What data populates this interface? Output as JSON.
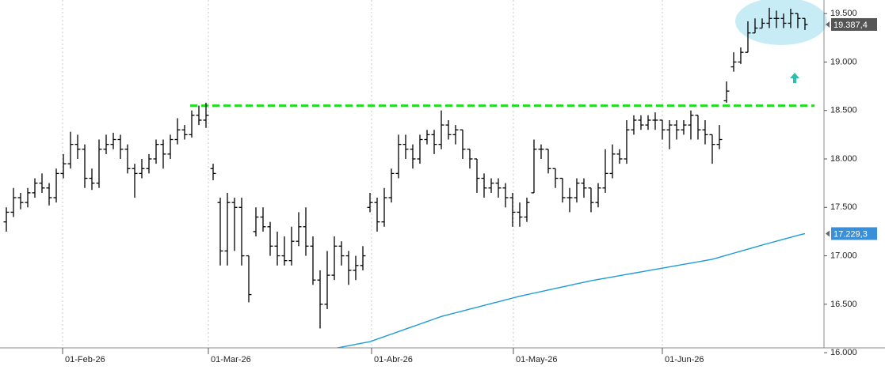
{
  "chart_data": {
    "type": "ohlc",
    "xlim": [
      -0.89,
      114.67
    ],
    "ylim": [
      16050,
      19640
    ],
    "xticks": [
      {
        "value": 7.89,
        "label": "01-Feb-26"
      },
      {
        "value": 28.33,
        "label": "01-Mar-26"
      },
      {
        "value": 51.22,
        "label": "01-Abr-26"
      },
      {
        "value": 71.11,
        "label": "01-May-26"
      },
      {
        "value": 92.0,
        "label": "01-Jun-26"
      }
    ],
    "yticks": [
      {
        "value": 16000,
        "label": "16.000"
      },
      {
        "value": 16500,
        "label": "16.500"
      },
      {
        "value": 17000,
        "label": "17.000"
      },
      {
        "value": 17500,
        "label": "17.500"
      },
      {
        "value": 18000,
        "label": "18.000"
      },
      {
        "value": 18500,
        "label": "18.500"
      },
      {
        "value": 19000,
        "label": "19.000"
      },
      {
        "value": 19500,
        "label": "19.500"
      }
    ],
    "hline": {
      "value": 18550,
      "color": "#22dd22"
    },
    "series": [
      {
        "type": "ohlc",
        "color": "#000000",
        "label_color": "#555555",
        "last_label": "19.387,4",
        "open": [
          17350,
          17450,
          17600,
          17550,
          17650,
          17750,
          17700,
          17600,
          17850,
          17950,
          18150,
          18100,
          17800,
          17750,
          18100,
          18150,
          18200,
          18100,
          17900,
          17850,
          17900,
          18000,
          18150,
          18050,
          18200,
          18300,
          18250,
          18450,
          18400,
          17900,
          17550,
          17050,
          17550,
          17500,
          17000,
          17250,
          17400,
          17300,
          17100,
          17000,
          16950,
          17150,
          17300,
          17100,
          16750,
          16500,
          16800,
          17100,
          17000,
          16850,
          16900,
          17500,
          17550,
          17350,
          17600,
          17850,
          18150,
          18100,
          18000,
          18200,
          18250,
          18150,
          18350,
          18250,
          18300,
          18100,
          18000,
          17800,
          17700,
          17750,
          17700,
          17600,
          17450,
          17400,
          17650,
          18100,
          18100,
          17900,
          17800,
          17600,
          17600,
          17750,
          17700,
          17550,
          17700,
          17850,
          18050,
          18000,
          18300,
          18400,
          18350,
          18400,
          18400,
          18300,
          18350,
          18300,
          18350,
          18450,
          18300,
          18250,
          18150,
          18600,
          18950,
          19000,
          19100,
          19300,
          19350,
          19400,
          19450,
          19450,
          19400,
          19500,
          19450
        ],
        "high": [
          17500,
          17700,
          17650,
          17700,
          17800,
          17850,
          17750,
          17900,
          18050,
          18280,
          18250,
          18150,
          17900,
          18200,
          18250,
          18270,
          18250,
          18150,
          17950,
          18000,
          18050,
          18200,
          18200,
          18250,
          18420,
          18350,
          18500,
          18550,
          18580,
          17950,
          17600,
          17650,
          17600,
          17600,
          17000,
          17500,
          17500,
          17350,
          17250,
          17200,
          17300,
          17450,
          17500,
          17200,
          16850,
          17050,
          17200,
          17150,
          17050,
          17000,
          17100,
          17650,
          17600,
          17700,
          17900,
          18250,
          18250,
          18150,
          18250,
          18300,
          18300,
          18500,
          18400,
          18350,
          18300,
          18100,
          18000,
          17850,
          17800,
          17800,
          17750,
          17650,
          17550,
          17600,
          18200,
          18150,
          18100,
          17900,
          17800,
          17700,
          17800,
          17800,
          17700,
          17750,
          18100,
          18150,
          18100,
          18400,
          18450,
          18450,
          18450,
          18480,
          18400,
          18400,
          18400,
          18400,
          18500,
          18450,
          18400,
          18250,
          18350,
          18800,
          19100,
          19150,
          19420,
          19450,
          19450,
          19560,
          19530,
          19500,
          19550,
          19500,
          19450
        ],
        "low": [
          17250,
          17400,
          17480,
          17500,
          17600,
          17650,
          17520,
          17550,
          17800,
          17900,
          18000,
          17700,
          17680,
          17700,
          18050,
          18100,
          18000,
          17850,
          17600,
          17800,
          17850,
          17950,
          17900,
          18000,
          18150,
          18200,
          18220,
          18350,
          18320,
          17780,
          16900,
          16900,
          17050,
          16900,
          16520,
          17200,
          17250,
          17000,
          16900,
          16900,
          16900,
          17100,
          17000,
          16700,
          16250,
          16450,
          16750,
          16900,
          16700,
          16750,
          16850,
          17450,
          17250,
          17300,
          17550,
          17800,
          18000,
          17900,
          17950,
          18150,
          18050,
          18100,
          18200,
          18150,
          18000,
          17900,
          17650,
          17600,
          17650,
          17600,
          17500,
          17300,
          17300,
          17350,
          17650,
          18000,
          17850,
          17700,
          17550,
          17450,
          17550,
          17600,
          17450,
          17500,
          17650,
          17800,
          17950,
          17950,
          18250,
          18300,
          18300,
          18300,
          18200,
          18100,
          18200,
          18250,
          18200,
          18200,
          18150,
          17950,
          18100,
          18580,
          18900,
          18980,
          19100,
          19300,
          19350,
          19350,
          19350,
          19350,
          19350,
          19350,
          19330
        ],
        "close": [
          17450,
          17600,
          17550,
          17650,
          17750,
          17700,
          17600,
          17850,
          17950,
          18150,
          18100,
          17800,
          17750,
          18100,
          18150,
          18200,
          18100,
          17900,
          17850,
          17900,
          18000,
          18150,
          18050,
          18200,
          18300,
          18250,
          18450,
          18400,
          18450,
          17850,
          17050,
          17550,
          17500,
          17000,
          16600,
          17400,
          17300,
          17100,
          17000,
          16950,
          17150,
          17300,
          17100,
          16750,
          16500,
          16800,
          17100,
          17000,
          16850,
          16900,
          17000,
          17550,
          17350,
          17600,
          17850,
          18150,
          18100,
          18000,
          18200,
          18250,
          18150,
          18350,
          18250,
          18300,
          18100,
          18000,
          17800,
          17700,
          17750,
          17700,
          17600,
          17450,
          17400,
          17550,
          18100,
          18100,
          17900,
          17800,
          17600,
          17600,
          17750,
          17700,
          17550,
          17700,
          17850,
          18050,
          18000,
          18300,
          18400,
          18350,
          18400,
          18400,
          18300,
          18350,
          18300,
          18350,
          18450,
          18300,
          18250,
          18150,
          18200,
          18700,
          19000,
          19100,
          19300,
          19350,
          19400,
          19450,
          19450,
          19400,
          19500,
          19450,
          19387.4
        ]
      },
      {
        "type": "line",
        "color": "#1e9bd7",
        "label_color": "#3a8fd9",
        "last_label": "17.229,3",
        "values": [
          null,
          null,
          null,
          null,
          null,
          null,
          null,
          null,
          null,
          null,
          null,
          null,
          null,
          null,
          null,
          null,
          null,
          null,
          null,
          null,
          null,
          null,
          null,
          null,
          null,
          null,
          null,
          null,
          null,
          null,
          null,
          null,
          null,
          null,
          null,
          null,
          null,
          null,
          null,
          null,
          null,
          null,
          null,
          null,
          null,
          16030,
          16044,
          16058,
          16072,
          16086,
          16100,
          16114,
          16140,
          16166,
          16192,
          16218,
          16244,
          16270,
          16296,
          16322,
          16348,
          16374,
          16393,
          16412,
          16431,
          16450,
          16469,
          16488,
          16507,
          16526,
          16545,
          16564,
          16583,
          16599,
          16615,
          16631,
          16647,
          16663,
          16679,
          16695,
          16711,
          16727,
          16743,
          16756,
          16769,
          16782,
          16795,
          16808,
          16821,
          16834,
          16847,
          16860,
          16873,
          16886,
          16899,
          16912,
          16925,
          16938,
          16951,
          16964,
          16985,
          17006,
          17027,
          17048,
          17069,
          17090,
          17111,
          17131,
          17151,
          17171,
          17191,
          17211,
          17229.3
        ]
      }
    ]
  }
}
